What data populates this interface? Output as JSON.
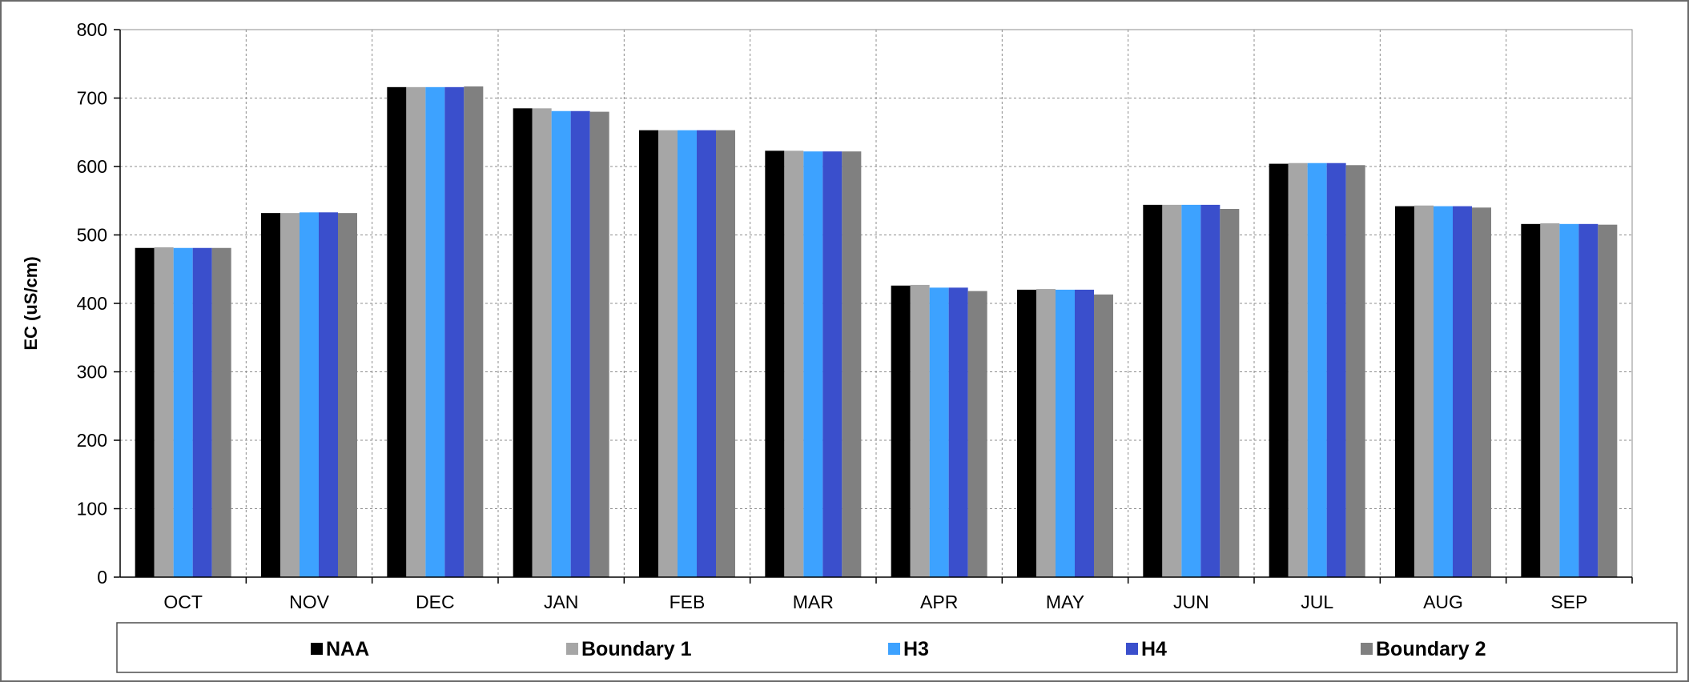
{
  "chart_data": {
    "type": "bar",
    "title": "",
    "xlabel": "",
    "ylabel": "EC (uS/cm)",
    "ylim": [
      0,
      800
    ],
    "yticks": [
      "0",
      "100",
      "200",
      "300",
      "400",
      "500",
      "600",
      "700",
      "800"
    ],
    "grid": true,
    "legend_position": "bottom",
    "categories": [
      "OCT",
      "NOV",
      "DEC",
      "JAN",
      "FEB",
      "MAR",
      "APR",
      "MAY",
      "JUN",
      "JUL",
      "AUG",
      "SEP"
    ],
    "series": [
      {
        "name": "NAA",
        "color": "#000000",
        "values": [
          481,
          532,
          716,
          685,
          653,
          623,
          426,
          420,
          544,
          604,
          542,
          516
        ]
      },
      {
        "name": "Boundary 1",
        "color": "#a6a6a6",
        "values": [
          482,
          532,
          716,
          685,
          653,
          623,
          427,
          421,
          544,
          605,
          543,
          517
        ]
      },
      {
        "name": "H3",
        "color": "#3da2ff",
        "values": [
          481,
          533,
          716,
          681,
          653,
          622,
          423,
          420,
          544,
          605,
          542,
          516
        ]
      },
      {
        "name": "H4",
        "color": "#3a4fcc",
        "values": [
          481,
          533,
          716,
          681,
          653,
          622,
          423,
          420,
          544,
          605,
          542,
          516
        ]
      },
      {
        "name": "Boundary 2",
        "color": "#808080",
        "values": [
          481,
          532,
          717,
          680,
          653,
          622,
          418,
          413,
          538,
          602,
          540,
          515
        ]
      }
    ]
  }
}
